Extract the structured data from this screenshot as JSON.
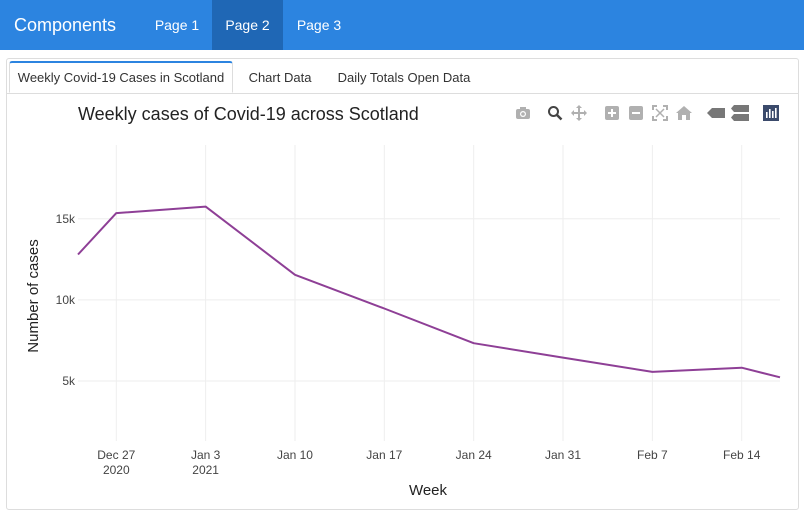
{
  "navbar": {
    "brand": "Components",
    "items": [
      {
        "label": "Page 1",
        "active": false
      },
      {
        "label": "Page 2",
        "active": true
      },
      {
        "label": "Page 3",
        "active": false
      }
    ]
  },
  "tabs": [
    {
      "label": "Weekly Covid-19 Cases in Scotland",
      "active": true
    },
    {
      "label": "Chart Data",
      "active": false
    },
    {
      "label": "Daily Totals Open Data",
      "active": false
    }
  ],
  "modebar": {
    "icons": [
      "camera-icon",
      "zoom-icon",
      "pan-icon",
      "zoom-in-icon",
      "zoom-out-icon",
      "autoscale-icon",
      "reset-axes-icon",
      "spike-lines-icon",
      "compare-hover-icon",
      "plotly-logo-icon"
    ]
  },
  "chart_data": {
    "type": "line",
    "title": "Weekly cases of Covid-19 across Scotland",
    "xlabel": "Week",
    "ylabel": "Number of cases",
    "x": [
      "2020-12-24",
      "2020-12-27",
      "2021-01-03",
      "2021-01-10",
      "2021-01-17",
      "2021-01-24",
      "2021-01-31",
      "2021-02-07",
      "2021-02-14",
      "2021-02-17"
    ],
    "series": [
      {
        "values": [
          12800,
          15350,
          15750,
          11550,
          9470,
          7330,
          6440,
          5560,
          5820,
          5230
        ],
        "color": "#8e3f96"
      }
    ],
    "x_ticks": [
      {
        "date": "2020-12-27",
        "label": "Dec 27",
        "sublabel": "2020"
      },
      {
        "date": "2021-01-03",
        "label": "Jan 3",
        "sublabel": "2021"
      },
      {
        "date": "2021-01-10",
        "label": "Jan 10",
        "sublabel": ""
      },
      {
        "date": "2021-01-17",
        "label": "Jan 17",
        "sublabel": ""
      },
      {
        "date": "2021-01-24",
        "label": "Jan 24",
        "sublabel": ""
      },
      {
        "date": "2021-01-31",
        "label": "Jan 31",
        "sublabel": ""
      },
      {
        "date": "2021-02-07",
        "label": "Feb 7",
        "sublabel": ""
      },
      {
        "date": "2021-02-14",
        "label": "Feb 14",
        "sublabel": ""
      }
    ],
    "y_ticks": [
      {
        "value": 5000,
        "label": "5k"
      },
      {
        "value": 10000,
        "label": "10k"
      },
      {
        "value": 15000,
        "label": "15k"
      }
    ],
    "xlim": [
      "2020-12-24",
      "2021-02-17"
    ],
    "ylim": [
      1300,
      19550
    ],
    "grid": true
  }
}
